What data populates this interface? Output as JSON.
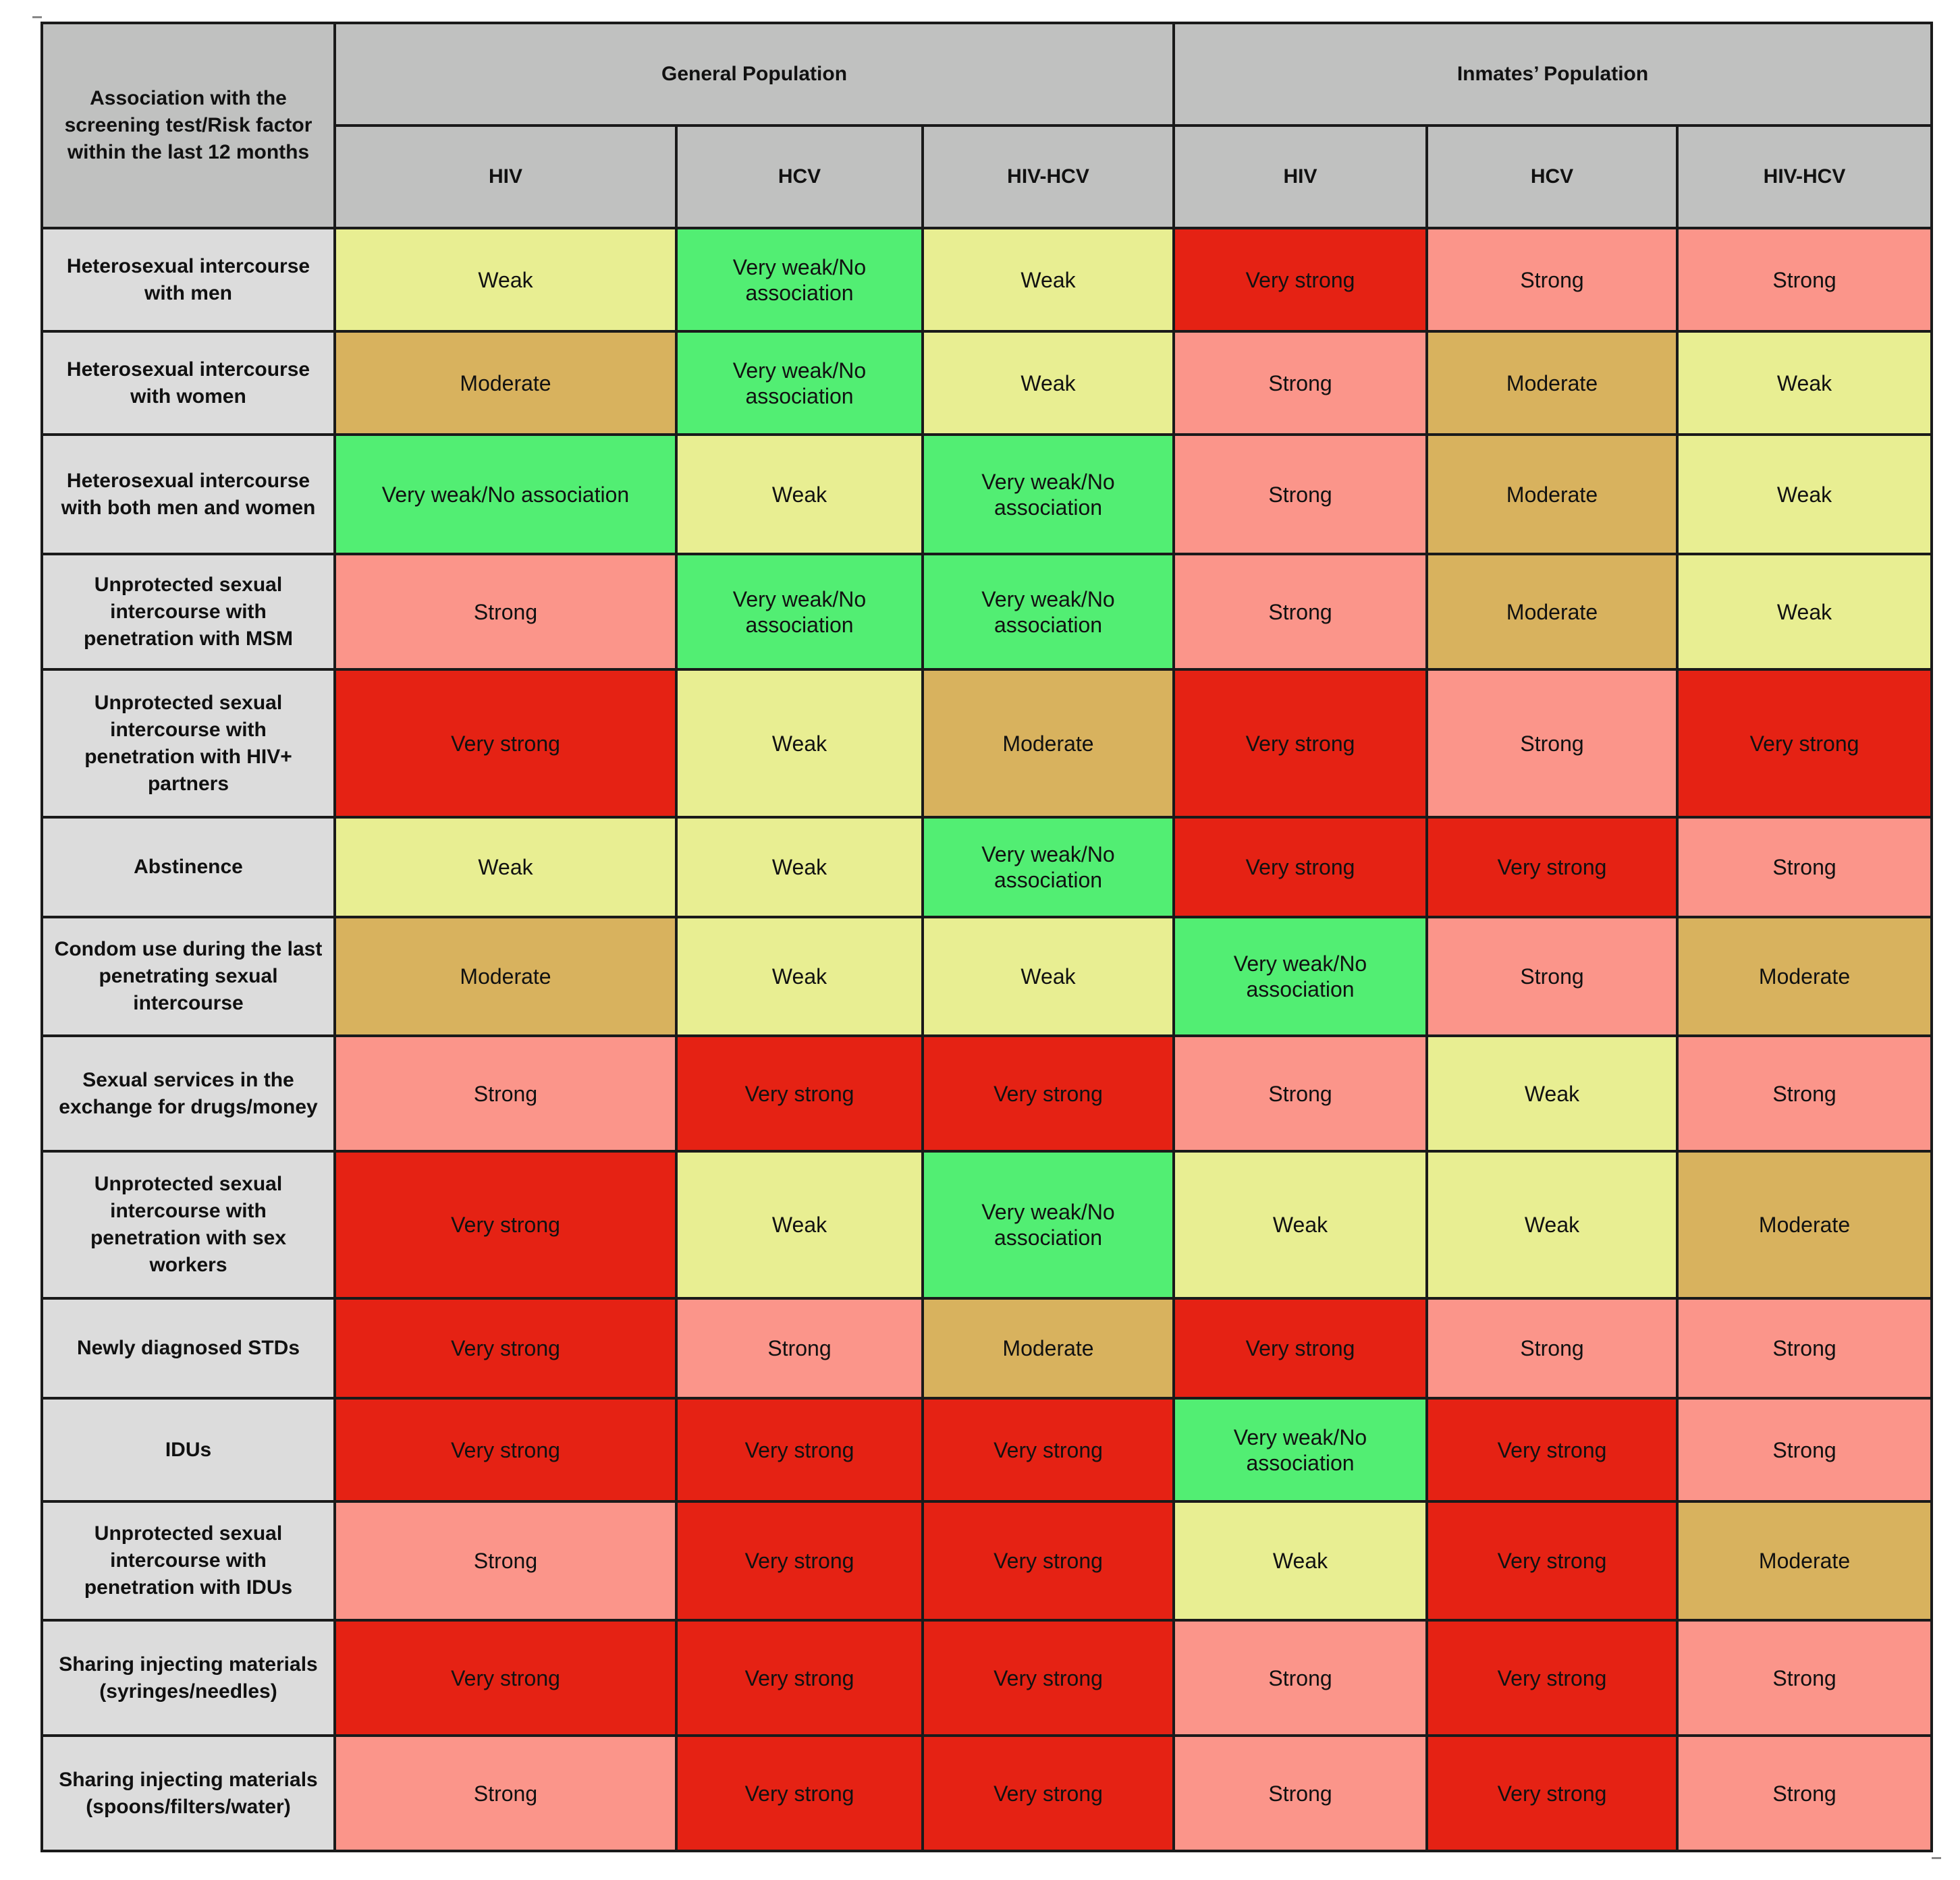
{
  "header": {
    "corner": "Association with the screening test/Risk factor within the last 12 months",
    "groups": [
      "General Population",
      "Inmates’ Population"
    ],
    "columns": [
      "HIV",
      "HCV",
      "HIV-HCV",
      "HIV",
      "HCV",
      "HIV-HCV"
    ]
  },
  "levels": {
    "very-strong": {
      "label": "Very strong",
      "color": "#e52214"
    },
    "strong": {
      "label": "Strong",
      "color": "#fb958a"
    },
    "moderate": {
      "label": "Moderate",
      "color": "#d8b25e"
    },
    "weak": {
      "label": "Weak",
      "color": "#e8ee92"
    },
    "very-weak": {
      "label": "Very weak/No association",
      "color": "#52ee73"
    }
  },
  "rows": [
    {
      "label": "Heterosexual intercourse with men",
      "cells": [
        "weak",
        "very-weak",
        "weak",
        "very-strong",
        "strong",
        "strong"
      ]
    },
    {
      "label": "Heterosexual intercourse with women",
      "cells": [
        "moderate",
        "very-weak",
        "weak",
        "strong",
        "moderate",
        "weak"
      ]
    },
    {
      "label": "Heterosexual intercourse with both men and women",
      "cells": [
        "very-weak",
        "weak",
        "very-weak",
        "strong",
        "moderate",
        "weak"
      ]
    },
    {
      "label": "Unprotected sexual intercourse with penetration with MSM",
      "cells": [
        "strong",
        "very-weak",
        "very-weak",
        "strong",
        "moderate",
        "weak"
      ]
    },
    {
      "label": "Unprotected sexual intercourse with penetration with HIV+ partners",
      "cells": [
        "very-strong",
        "weak",
        "moderate",
        "very-strong",
        "strong",
        "very-strong"
      ]
    },
    {
      "label": "Abstinence",
      "cells": [
        "weak",
        "weak",
        "very-weak",
        "very-strong",
        "very-strong",
        "strong"
      ]
    },
    {
      "label": "Condom use during the last penetrating sexual intercourse",
      "cells": [
        "moderate",
        "weak",
        "weak",
        "very-weak",
        "strong",
        "moderate"
      ]
    },
    {
      "label": "Sexual services in the exchange for drugs/money",
      "cells": [
        "strong",
        "very-strong",
        "very-strong",
        "strong",
        "weak",
        "strong"
      ]
    },
    {
      "label": "Unprotected sexual intercourse with penetration with sex workers",
      "cells": [
        "very-strong",
        "weak",
        "very-weak",
        "weak",
        "weak",
        "moderate"
      ]
    },
    {
      "label": "Newly diagnosed STDs",
      "cells": [
        "very-strong",
        "strong",
        "moderate",
        "very-strong",
        "strong",
        "strong"
      ]
    },
    {
      "label": "IDUs",
      "cells": [
        "very-strong",
        "very-strong",
        "very-strong",
        "very-weak",
        "very-strong",
        "strong"
      ]
    },
    {
      "label": "Unprotected sexual intercourse with penetration with IDUs",
      "cells": [
        "strong",
        "very-strong",
        "very-strong",
        "weak",
        "very-strong",
        "moderate"
      ]
    },
    {
      "label": "Sharing injecting materials (syringes/needles)",
      "cells": [
        "very-strong",
        "very-strong",
        "very-strong",
        "strong",
        "very-strong",
        "strong"
      ]
    },
    {
      "label": "Sharing injecting materials (spoons/filters/water)",
      "cells": [
        "strong",
        "very-strong",
        "very-strong",
        "strong",
        "very-strong",
        "strong"
      ]
    }
  ]
}
